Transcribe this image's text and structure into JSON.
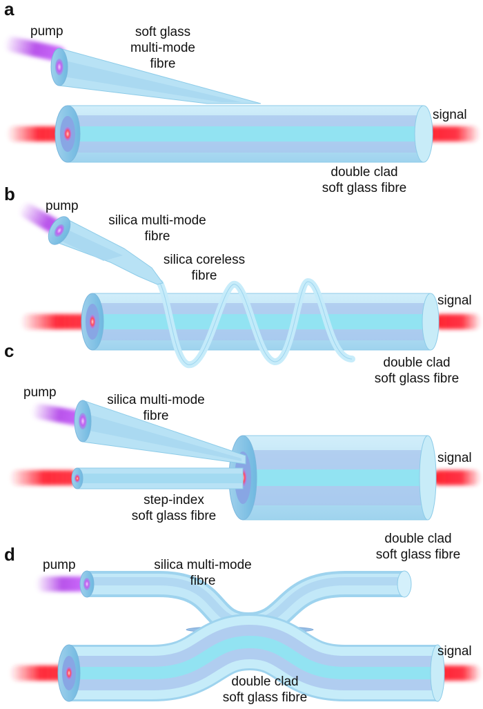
{
  "panels": {
    "a": {
      "letter": "a",
      "pump": "pump",
      "signal": "signal",
      "mm_fibre": [
        "soft glass",
        "multi-mode",
        "fibre"
      ],
      "dc_fibre": [
        "double clad",
        "soft glass fibre"
      ]
    },
    "b": {
      "letter": "b",
      "pump": "pump",
      "signal": "signal",
      "mm_fibre": [
        "silica multi-mode",
        "fibre"
      ],
      "coreless": [
        "silica coreless",
        "fibre"
      ],
      "dc_fibre": [
        "double clad",
        "soft glass fibre"
      ]
    },
    "c": {
      "letter": "c",
      "pump": "pump",
      "signal": "signal",
      "mm_fibre": [
        "silica multi-mode",
        "fibre"
      ],
      "step_index": [
        "step-index",
        "soft glass fibre"
      ]
    },
    "d": {
      "letter": "d",
      "pump": "pump",
      "signal": "signal",
      "mm_fibre": [
        "silica multi-mode",
        "fibre"
      ],
      "dc_top": [
        "double clad",
        "soft glass fibre"
      ],
      "dc_bottom": [
        "double clad",
        "soft glass fibre"
      ]
    }
  },
  "colors": {
    "pump_beam": "#b040e8",
    "signal_beam": "#ff2030",
    "cladding": "#bfe6f6",
    "inner_clad": "#a9c8ee",
    "core": "#8fe4f2",
    "outline": "#7cc6e6"
  }
}
